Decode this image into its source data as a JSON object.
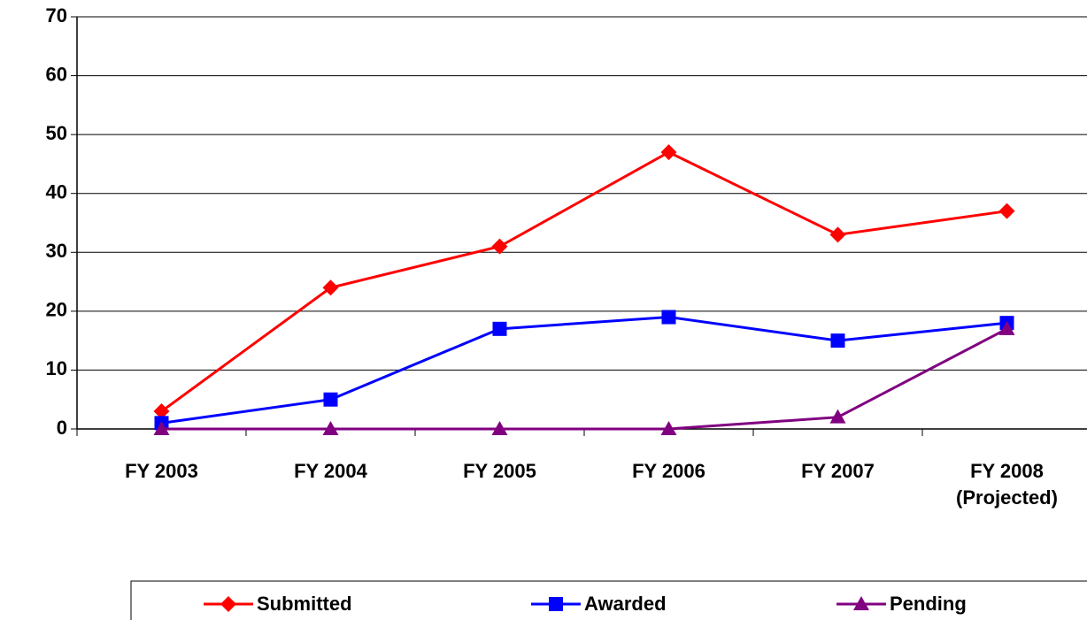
{
  "chart_data": {
    "type": "line",
    "categories": [
      "FY 2003",
      "FY 2004",
      "FY 2005",
      "FY 2006",
      "FY 2007",
      "FY 2008 (Projected)"
    ],
    "series": [
      {
        "name": "Submitted",
        "color": "#ff0000",
        "marker": "diamond",
        "values": [
          3,
          24,
          31,
          47,
          33,
          37
        ]
      },
      {
        "name": "Awarded",
        "color": "#0000ff",
        "marker": "square",
        "values": [
          1,
          5,
          17,
          19,
          15,
          18
        ]
      },
      {
        "name": "Pending",
        "color": "#800080",
        "marker": "triangle",
        "values": [
          0,
          0,
          0,
          0,
          2,
          17
        ]
      }
    ],
    "ylim": [
      0,
      70
    ],
    "yticks": [
      0,
      10,
      20,
      30,
      40,
      50,
      60,
      70
    ],
    "grid": true,
    "legend": "bottom"
  }
}
